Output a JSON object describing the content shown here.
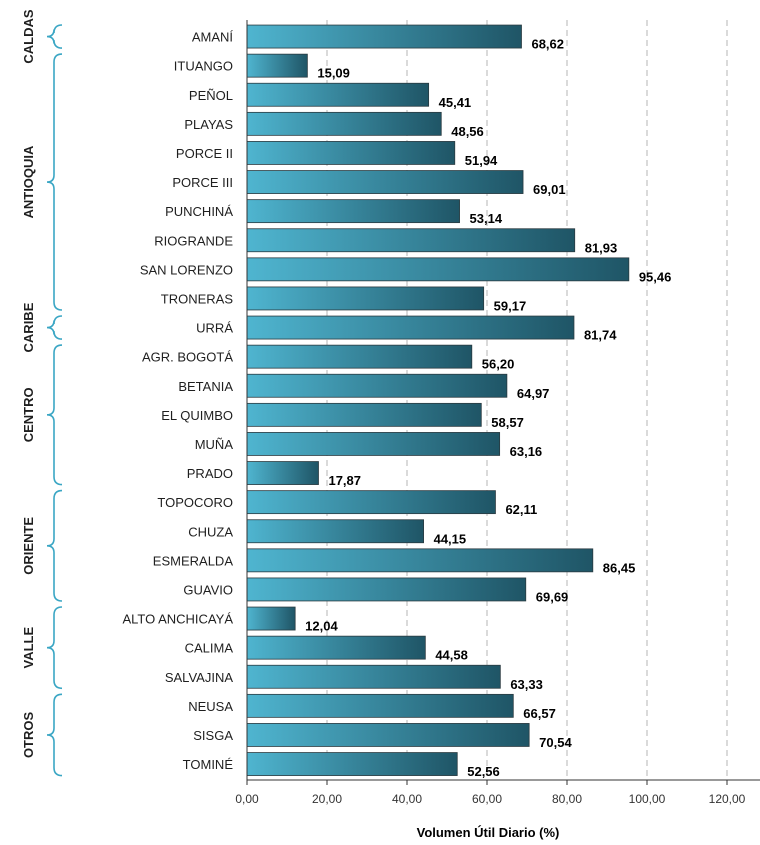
{
  "chart_data": {
    "type": "bar",
    "orientation": "horizontal",
    "xlabel": "Volumen Útil Diario (%)",
    "xlim": [
      0,
      120
    ],
    "xticks": [
      "0,00",
      "20,00",
      "40,00",
      "60,00",
      "80,00",
      "100,00",
      "120,00"
    ],
    "xtick_values": [
      0,
      20,
      40,
      60,
      80,
      100,
      120
    ],
    "grid": "vertical dashed",
    "categories": [
      "AMANÍ",
      "ITUANGO",
      "PEÑOL",
      "PLAYAS",
      "PORCE II",
      "PORCE III",
      "PUNCHINÁ",
      "RIOGRANDE",
      "SAN LORENZO",
      "TRONERAS",
      "URRÁ",
      "AGR. BOGOTÁ",
      "BETANIA",
      "EL QUIMBO",
      "MUÑA",
      "PRADO",
      "TOPOCORO",
      "CHUZA",
      "ESMERALDA",
      "GUAVIO",
      "ALTO ANCHICAYÁ",
      "CALIMA",
      "SALVAJINA",
      "NEUSA",
      "SISGA",
      "TOMINÉ"
    ],
    "values": [
      68.62,
      15.09,
      45.41,
      48.56,
      51.94,
      69.01,
      53.14,
      81.93,
      95.46,
      59.17,
      81.74,
      56.2,
      64.97,
      58.57,
      63.16,
      17.87,
      62.11,
      44.15,
      86.45,
      69.69,
      12.04,
      44.58,
      63.33,
      66.57,
      70.54,
      52.56
    ],
    "value_labels": [
      "68,62",
      "15,09",
      "45,41",
      "48,56",
      "51,94",
      "69,01",
      "53,14",
      "81,93",
      "95,46",
      "59,17",
      "81,74",
      "56,20",
      "64,97",
      "58,57",
      "63,16",
      "17,87",
      "62,11",
      "44,15",
      "86,45",
      "69,69",
      "12,04",
      "44,58",
      "63,33",
      "66,57",
      "70,54",
      "52,56"
    ],
    "groups": [
      {
        "name": "CALDAS",
        "start": 0,
        "end": 0
      },
      {
        "name": "ANTIOQUIA",
        "start": 1,
        "end": 9
      },
      {
        "name": "CARIBE",
        "start": 10,
        "end": 10
      },
      {
        "name": "CENTRO",
        "start": 11,
        "end": 15
      },
      {
        "name": "ORIENTE",
        "start": 16,
        "end": 19
      },
      {
        "name": "VALLE",
        "start": 20,
        "end": 22
      },
      {
        "name": "OTROS",
        "start": 23,
        "end": 25
      }
    ],
    "colors": {
      "bar_light": "#4fb5d0",
      "bar_dark": "#1f5566",
      "bracket": "#3aa6c4",
      "grid": "#b5b5b5"
    }
  }
}
